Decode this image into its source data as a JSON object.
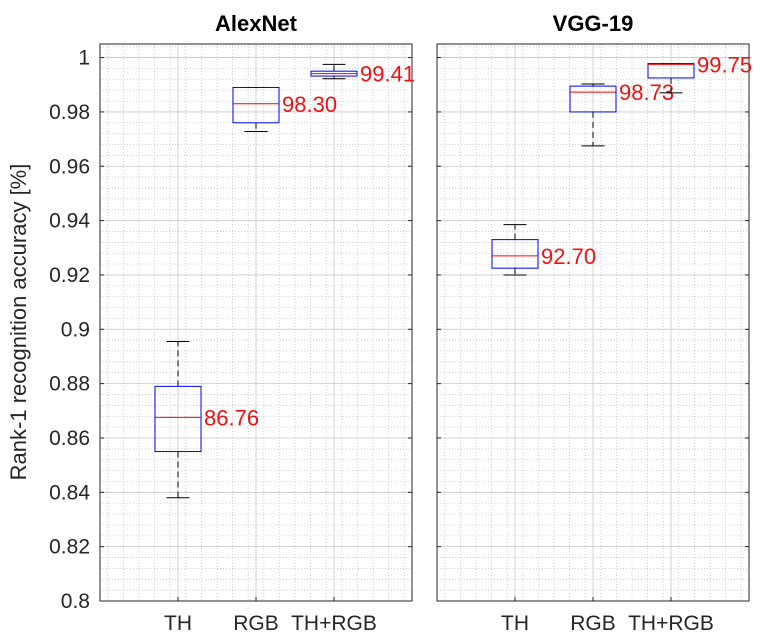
{
  "chart_data": [
    {
      "type": "box",
      "title": "AlexNet",
      "ylabel": "Rank-1 recognition accuracy [%]",
      "xlabel": "",
      "ylim": [
        0.8,
        1.005
      ],
      "yticks": [
        0.8,
        0.82,
        0.84,
        0.86,
        0.88,
        0.9,
        0.92,
        0.94,
        0.96,
        0.98,
        1
      ],
      "ytick_labels": [
        "0.8",
        "0.82",
        "0.84",
        "0.86",
        "0.88",
        "0.9",
        "0.92",
        "0.94",
        "0.96",
        "0.98",
        "1"
      ],
      "grid": "major and minor",
      "categories": [
        "TH",
        "RGB",
        "TH+RGB"
      ],
      "boxes": [
        {
          "whisker_low": 0.838,
          "q1": 0.855,
          "median": 0.8676,
          "q3": 0.879,
          "whisker_high": 0.8955,
          "label": "86.76"
        },
        {
          "whisker_low": 0.9728,
          "q1": 0.976,
          "median": 0.983,
          "q3": 0.989,
          "whisker_high": 0.989,
          "label": "98.30"
        },
        {
          "whisker_low": 0.9922,
          "q1": 0.9932,
          "median": 0.9941,
          "q3": 0.995,
          "whisker_high": 0.9975,
          "label": "99.41"
        }
      ]
    },
    {
      "type": "box",
      "title": "VGG-19",
      "ylabel": "",
      "xlabel": "",
      "ylim": [
        0.8,
        1.005
      ],
      "yticks": [
        0.8,
        0.82,
        0.84,
        0.86,
        0.88,
        0.9,
        0.92,
        0.94,
        0.96,
        0.98,
        1
      ],
      "ytick_labels": [],
      "grid": "major and minor",
      "categories": [
        "TH",
        "RGB",
        "TH+RGB"
      ],
      "boxes": [
        {
          "whisker_low": 0.92,
          "q1": 0.9225,
          "median": 0.927,
          "q3": 0.933,
          "whisker_high": 0.9385,
          "label": "92.70"
        },
        {
          "whisker_low": 0.9675,
          "q1": 0.98,
          "median": 0.9873,
          "q3": 0.9895,
          "whisker_high": 0.9903,
          "label": "98.73"
        },
        {
          "whisker_low": 0.987,
          "q1": 0.9925,
          "median": 0.9975,
          "q3": 0.9978,
          "whisker_high": 0.9978,
          "label": "99.75"
        }
      ]
    }
  ],
  "colors": {
    "box": "#0000ff",
    "median": "#ff0000",
    "median_label": "#ee1111",
    "whisker": "#000000",
    "axes": "#262626",
    "major_grid": "#c8c8c8",
    "minor_grid": "#bdbdbd"
  }
}
